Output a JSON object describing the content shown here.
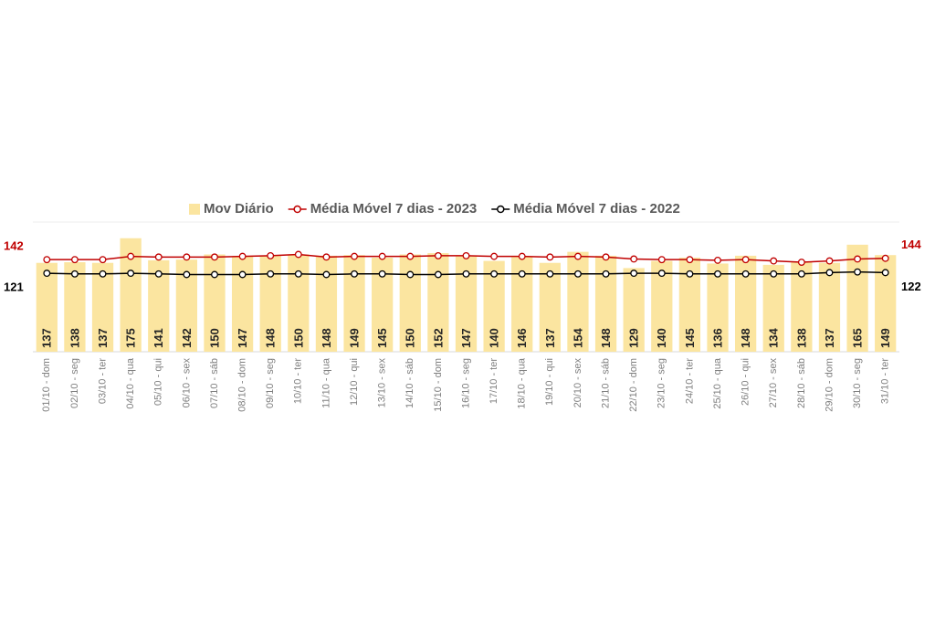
{
  "chart_data": {
    "type": "combo",
    "categories": [
      "01/10 - dom",
      "02/10 - seg",
      "03/10 - ter",
      "04/10 - qua",
      "05/10 - qui",
      "06/10 - sex",
      "07/10 - sáb",
      "08/10 - dom",
      "09/10 - seg",
      "10/10 - ter",
      "11/10 - qua",
      "12/10 - qui",
      "13/10 - sex",
      "14/10 - sáb",
      "15/10 - dom",
      "16/10 - seg",
      "17/10 - ter",
      "18/10 - qua",
      "19/10 - qui",
      "20/10 - sex",
      "21/10 - sáb",
      "22/10 - dom",
      "23/10 - seg",
      "24/10 - ter",
      "25/10 - qua",
      "26/10 - qui",
      "27/10 - sex",
      "28/10 - sáb",
      "29/10 - dom",
      "30/10 - seg",
      "31/10 - ter"
    ],
    "series": [
      {
        "name": "Mov Diário",
        "type": "bar",
        "color": "#fbe5a0",
        "values": [
          137,
          138,
          137,
          175,
          141,
          142,
          150,
          147,
          148,
          150,
          148,
          149,
          145,
          150,
          152,
          147,
          140,
          146,
          137,
          154,
          148,
          129,
          140,
          145,
          136,
          148,
          134,
          138,
          137,
          165,
          149
        ]
      },
      {
        "name": "Média Móvel 7 dias - 2023",
        "type": "line",
        "color": "#c00000",
        "values": [
          142,
          142,
          142,
          147,
          146,
          146,
          146,
          147,
          148,
          150,
          146,
          147,
          147,
          147,
          148,
          148,
          147,
          147,
          146,
          147,
          146,
          143,
          142,
          142,
          141,
          142,
          140,
          138,
          140,
          143,
          144
        ]
      },
      {
        "name": "Média Móvel 7 dias - 2022",
        "type": "line",
        "color": "#000000",
        "values": [
          121,
          120,
          120,
          121,
          120,
          119,
          119,
          119,
          120,
          120,
          119,
          120,
          120,
          119,
          119,
          120,
          120,
          120,
          120,
          120,
          120,
          121,
          121,
          120,
          120,
          120,
          120,
          120,
          122,
          123,
          122
        ]
      }
    ],
    "ylim": [
      0,
      200
    ]
  }
}
